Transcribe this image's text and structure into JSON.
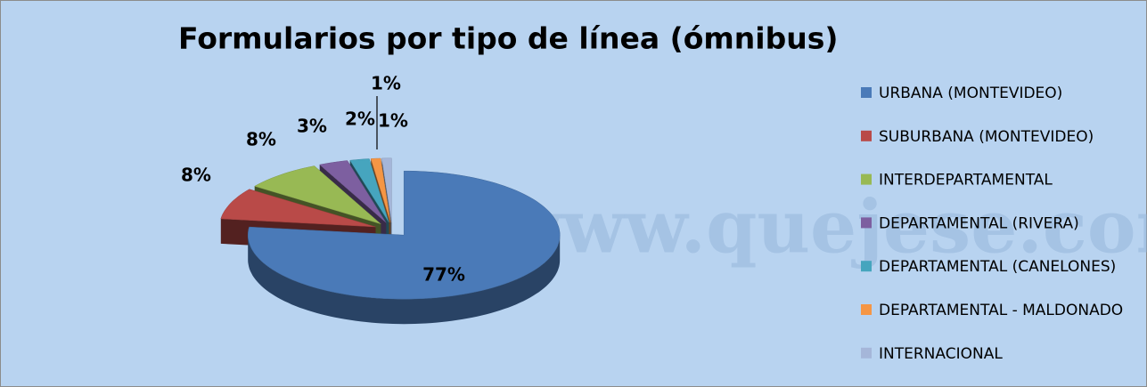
{
  "chart_data": {
    "type": "pie3d",
    "title": "Formularios por tipo de línea (ómnibus)",
    "watermark": "www.quejese.com.uy",
    "categories": [
      "URBANA (MONTEVIDEO)",
      "SUBURBANA (MONTEVIDEO)",
      "INTERDEPARTAMENTAL",
      "DEPARTAMENTAL (RIVERA)",
      "DEPARTAMENTAL (CANELONES)",
      "DEPARTAMENTAL - MALDONADO",
      "INTERNACIONAL"
    ],
    "values": [
      77,
      8,
      8,
      3,
      2,
      1,
      1
    ],
    "value_labels": [
      "77%",
      "8%",
      "8%",
      "3%",
      "2%",
      "1%",
      "1%"
    ],
    "colors": [
      "#4a7ab8",
      "#b94a48",
      "#98b954",
      "#7d5fa0",
      "#46a5be",
      "#f59645",
      "#a5b6d9"
    ],
    "legend": "right"
  }
}
